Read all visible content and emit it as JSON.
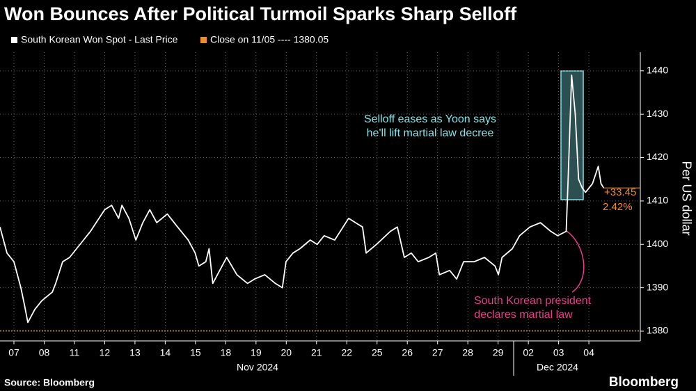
{
  "chart_data": {
    "type": "line",
    "title": "Won Bounces After Political Turmoil Sparks Sharp Selloff",
    "y_label": "Per US dollar",
    "source": "Source: Bloomberg",
    "brand": "Bloomberg",
    "x_groups": [
      "Nov 2024",
      "Dec 2024"
    ],
    "xlim": [
      -0.46,
      20.7
    ],
    "xticks": [
      {
        "value": 0,
        "label": "07"
      },
      {
        "value": 1,
        "label": "08"
      },
      {
        "value": 2,
        "label": "11"
      },
      {
        "value": 3,
        "label": "12"
      },
      {
        "value": 4,
        "label": "13"
      },
      {
        "value": 5,
        "label": "14"
      },
      {
        "value": 6,
        "label": "15"
      },
      {
        "value": 7,
        "label": "18"
      },
      {
        "value": 8,
        "label": "19"
      },
      {
        "value": 9,
        "label": "20"
      },
      {
        "value": 10,
        "label": "21"
      },
      {
        "value": 11,
        "label": "22"
      },
      {
        "value": 12,
        "label": "25"
      },
      {
        "value": 13,
        "label": "26"
      },
      {
        "value": 14,
        "label": "27"
      },
      {
        "value": 15,
        "label": "28"
      },
      {
        "value": 16,
        "label": "29"
      },
      {
        "value": 17,
        "label": "02"
      },
      {
        "value": 18,
        "label": "03"
      },
      {
        "value": 19,
        "label": "04"
      }
    ],
    "ylim": [
      1377.75,
      1444.3
    ],
    "yticks": [
      1380,
      1390,
      1400,
      1410,
      1420,
      1430,
      1440
    ],
    "grid": true,
    "x": [
      -0.46,
      -0.23,
      0,
      0.23,
      0.35,
      0.46,
      0.69,
      0.92,
      1.27,
      1.38,
      1.61,
      1.84,
      2.07,
      2.3,
      2.53,
      3.0,
      3.23,
      3.46,
      3.57,
      3.8,
      4.03,
      4.26,
      4.49,
      4.72,
      5.07,
      5.41,
      5.76,
      5.99,
      6.11,
      6.34,
      6.45,
      6.57,
      6.8,
      7.03,
      7.37,
      7.72,
      7.95,
      8.29,
      8.64,
      8.87,
      8.99,
      9.22,
      9.45,
      9.79,
      10.02,
      10.25,
      10.6,
      11.06,
      11.29,
      11.52,
      11.64,
      11.98,
      12.44,
      12.67,
      12.9,
      13.13,
      13.36,
      13.71,
      13.94,
      14.06,
      14.4,
      14.63,
      14.86,
      15.21,
      15.55,
      15.9,
      16.01,
      16.13,
      16.47,
      16.71,
      17.05,
      17.4,
      17.74,
      17.97,
      18.25,
      18.32,
      18.43,
      18.55,
      18.66,
      18.78,
      18.89,
      19.12,
      19.31,
      19.4,
      19.49
    ],
    "series": [
      {
        "name": "South Korean Won Spot - Last Price",
        "color": "#ffffff",
        "values": [
          1404,
          1398,
          1396,
          1390,
          1386,
          1382,
          1385,
          1387,
          1389,
          1391,
          1396,
          1397,
          1399,
          1401,
          1403,
          1408,
          1409,
          1406,
          1409,
          1406,
          1401,
          1405,
          1408,
          1405,
          1407,
          1404,
          1401,
          1398,
          1395,
          1396,
          1399,
          1391,
          1394,
          1397,
          1393,
          1391,
          1392,
          1393,
          1391,
          1390,
          1396,
          1398,
          1399,
          1401,
          1400,
          1402,
          1401,
          1406,
          1405,
          1404,
          1398,
          1400,
          1403,
          1404,
          1397,
          1398,
          1396,
          1397,
          1398,
          1393,
          1394,
          1392,
          1396,
          1396,
          1397,
          1395,
          1393,
          1397,
          1399,
          1402,
          1404,
          1405,
          1403,
          1402,
          1403,
          1416,
          1439,
          1430,
          1415,
          1413,
          1412,
          1414,
          1418,
          1414,
          1413
        ]
      }
    ],
    "reference_line": {
      "label": "Close on 11/05 ---- 1380.05",
      "value": 1380.05,
      "color": "#f28c28"
    },
    "change_labels": [
      "+33.45",
      "2.42%"
    ],
    "annotations": [
      "Selloff eases as Yoon says",
      "he'll lift martial law decree",
      "South Korean president",
      "declares martial law"
    ]
  }
}
